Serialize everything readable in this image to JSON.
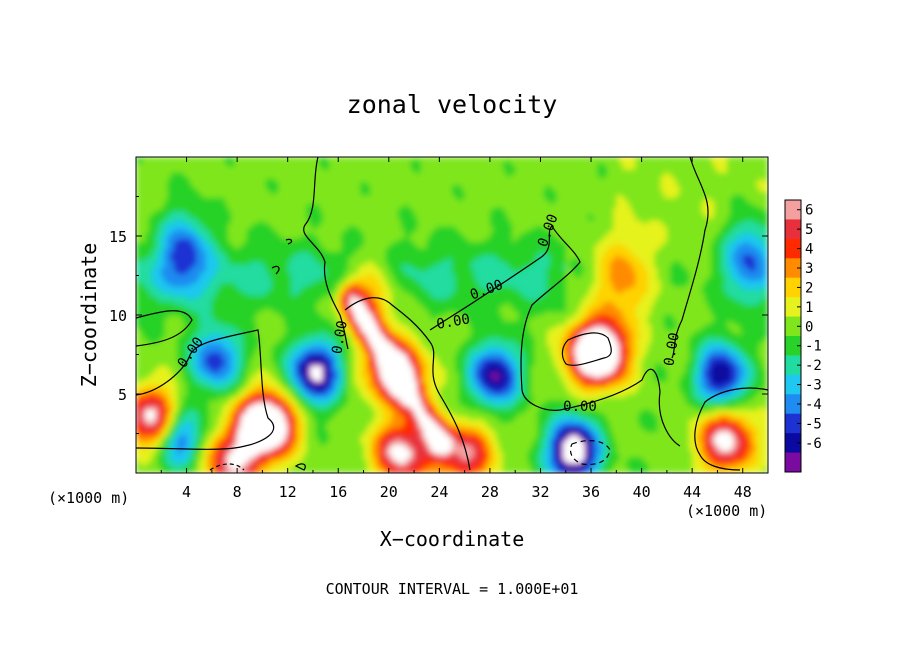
{
  "chart_data": {
    "type": "heatmap",
    "title": "zonal velocity",
    "xlabel": "X−coordinate",
    "ylabel": "Z−coordinate",
    "x_multiplier": "(×1000 m)",
    "y_multiplier": "(×1000 m)",
    "xlim": [
      0,
      50
    ],
    "ylim": [
      0,
      20
    ],
    "x_ticks": [
      4,
      8,
      12,
      16,
      20,
      24,
      28,
      32,
      36,
      40,
      44,
      48
    ],
    "y_ticks": [
      5,
      10,
      15
    ],
    "colorbar": {
      "levels": [
        6,
        5,
        4,
        3,
        2,
        1,
        0,
        -1,
        -2,
        -3,
        -4,
        -5,
        -6
      ],
      "colors": [
        "#f4a0a0",
        "#e8303c",
        "#ff2a00",
        "#ff8c00",
        "#ffd200",
        "#e6f21e",
        "#7fe61e",
        "#28d228",
        "#20dca0",
        "#1ec8f0",
        "#1e8cf0",
        "#1e32d2",
        "#0a0aa0",
        "#7a0aa0"
      ]
    },
    "contour_labels": [
      "0.00",
      "0.00",
      "0.00",
      "0.00",
      "0.00",
      "0.00",
      "0.00"
    ],
    "footer": "CONTOUR INTERVAL = 1.000E+01",
    "features": [
      {
        "x": 10.2,
        "z": 3.0,
        "u": 12,
        "sign": "positive"
      },
      {
        "x": 14.2,
        "z": 6.4,
        "u": -7.5,
        "sign": "negative"
      },
      {
        "x": 20.6,
        "z": 6.3,
        "u": 7,
        "sign": "positive"
      },
      {
        "x": 28.4,
        "z": 6.2,
        "u": -6.5,
        "sign": "negative"
      },
      {
        "x": 36.5,
        "z": 7.6,
        "u": 12,
        "sign": "positive"
      },
      {
        "x": 34.6,
        "z": 1.4,
        "u": -9,
        "sign": "negative"
      },
      {
        "x": 46.3,
        "z": 6.2,
        "u": -6.5,
        "sign": "negative"
      },
      {
        "x": 46.7,
        "z": 2.0,
        "u": 7,
        "sign": "positive"
      },
      {
        "x": 6.3,
        "z": 7.2,
        "u": -5,
        "sign": "negative"
      },
      {
        "x": 3.5,
        "z": 2.3,
        "u": -5,
        "sign": "negative"
      },
      {
        "x": 1.3,
        "z": 3.5,
        "u": 7,
        "sign": "positive"
      },
      {
        "x": 21.0,
        "z": 1.3,
        "u": 7,
        "sign": "positive"
      },
      {
        "x": 26.0,
        "z": 1.2,
        "u": 6,
        "sign": "positive"
      },
      {
        "x": 7.5,
        "z": 0.6,
        "u": 6,
        "sign": "positive"
      },
      {
        "x": 3.8,
        "z": 14.0,
        "u": -4.2,
        "sign": "negative"
      },
      {
        "x": 48.5,
        "z": 13.5,
        "u": -4.5,
        "sign": "negative"
      },
      {
        "x": 18.5,
        "z": 11.2,
        "u": 3.5,
        "sign": "positive"
      },
      {
        "x": 38.5,
        "z": 12.2,
        "u": 3.5,
        "sign": "positive"
      }
    ]
  }
}
